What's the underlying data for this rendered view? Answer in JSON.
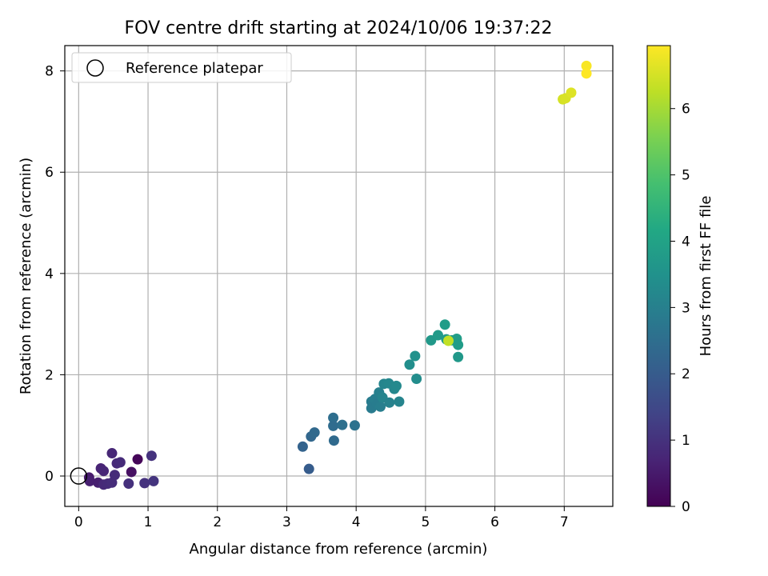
{
  "chart_data": {
    "type": "scatter",
    "title": "FOV centre drift starting at 2024/10/06 19:37:22",
    "xlabel": "Angular distance from reference (arcmin)",
    "ylabel": "Rotation from reference (arcmin)",
    "xlim": [
      -0.2,
      7.7
    ],
    "ylim": [
      -0.6,
      8.5
    ],
    "xticks": [
      0,
      1,
      2,
      3,
      4,
      5,
      6,
      7
    ],
    "yticks": [
      0,
      2,
      4,
      6,
      8
    ],
    "grid": true,
    "legend": {
      "placement": "top-left",
      "entries": [
        "Reference platepar"
      ]
    },
    "colorbar": {
      "label": "Hours from first FF file",
      "colormap": "viridis",
      "range": [
        0,
        6.95
      ],
      "ticks": [
        0,
        1,
        2,
        3,
        4,
        5,
        6
      ]
    },
    "reference": {
      "name": "Reference platepar",
      "x": 0,
      "y": 0
    },
    "points": [
      {
        "x": 0.85,
        "y": 0.33,
        "c": 0.1
      },
      {
        "x": 0.76,
        "y": 0.08,
        "c": 0.3
      },
      {
        "x": 0.15,
        "y": -0.03,
        "c": 0.5
      },
      {
        "x": 0.16,
        "y": -0.1,
        "c": 0.6
      },
      {
        "x": 0.28,
        "y": -0.13,
        "c": 0.6
      },
      {
        "x": 0.32,
        "y": 0.15,
        "c": 0.7
      },
      {
        "x": 0.36,
        "y": 0.1,
        "c": 0.75
      },
      {
        "x": 0.36,
        "y": -0.17,
        "c": 0.8
      },
      {
        "x": 0.42,
        "y": -0.15,
        "c": 0.85
      },
      {
        "x": 0.48,
        "y": 0.45,
        "c": 0.75
      },
      {
        "x": 0.48,
        "y": -0.13,
        "c": 0.9
      },
      {
        "x": 0.52,
        "y": 0.02,
        "c": 0.85
      },
      {
        "x": 0.55,
        "y": 0.25,
        "c": 0.8
      },
      {
        "x": 0.6,
        "y": 0.27,
        "c": 0.85
      },
      {
        "x": 0.72,
        "y": -0.15,
        "c": 0.95
      },
      {
        "x": 0.95,
        "y": -0.14,
        "c": 1.0
      },
      {
        "x": 1.05,
        "y": 0.4,
        "c": 1.0
      },
      {
        "x": 1.08,
        "y": -0.1,
        "c": 1.05
      },
      {
        "x": 3.23,
        "y": 0.58,
        "c": 2.2
      },
      {
        "x": 3.32,
        "y": 0.14,
        "c": 2.0
      },
      {
        "x": 3.35,
        "y": 0.78,
        "c": 2.3
      },
      {
        "x": 3.4,
        "y": 0.86,
        "c": 2.35
      },
      {
        "x": 3.67,
        "y": 1.15,
        "c": 2.5
      },
      {
        "x": 3.67,
        "y": 0.99,
        "c": 2.45
      },
      {
        "x": 3.68,
        "y": 0.7,
        "c": 2.4
      },
      {
        "x": 3.8,
        "y": 1.01,
        "c": 2.55
      },
      {
        "x": 3.98,
        "y": 1.0,
        "c": 2.6
      },
      {
        "x": 4.22,
        "y": 1.47,
        "c": 2.9
      },
      {
        "x": 4.22,
        "y": 1.34,
        "c": 2.85
      },
      {
        "x": 4.27,
        "y": 1.52,
        "c": 2.95
      },
      {
        "x": 4.3,
        "y": 1.42,
        "c": 2.9
      },
      {
        "x": 4.33,
        "y": 1.65,
        "c": 3.0
      },
      {
        "x": 4.35,
        "y": 1.37,
        "c": 2.95
      },
      {
        "x": 4.38,
        "y": 1.55,
        "c": 3.1
      },
      {
        "x": 4.4,
        "y": 1.82,
        "c": 3.15
      },
      {
        "x": 4.47,
        "y": 1.83,
        "c": 3.2
      },
      {
        "x": 4.48,
        "y": 1.45,
        "c": 3.05
      },
      {
        "x": 4.55,
        "y": 1.72,
        "c": 3.2
      },
      {
        "x": 4.58,
        "y": 1.78,
        "c": 3.25
      },
      {
        "x": 4.62,
        "y": 1.47,
        "c": 3.1
      },
      {
        "x": 4.77,
        "y": 2.2,
        "c": 3.4
      },
      {
        "x": 4.85,
        "y": 2.37,
        "c": 3.5
      },
      {
        "x": 4.87,
        "y": 1.92,
        "c": 3.35
      },
      {
        "x": 5.08,
        "y": 2.68,
        "c": 3.7
      },
      {
        "x": 5.18,
        "y": 2.78,
        "c": 3.75
      },
      {
        "x": 5.28,
        "y": 2.99,
        "c": 3.8
      },
      {
        "x": 5.3,
        "y": 2.7,
        "c": 3.75
      },
      {
        "x": 5.38,
        "y": 2.68,
        "c": 3.8
      },
      {
        "x": 5.45,
        "y": 2.71,
        "c": 3.85
      },
      {
        "x": 5.47,
        "y": 2.59,
        "c": 3.8
      },
      {
        "x": 5.47,
        "y": 2.35,
        "c": 3.7
      },
      {
        "x": 5.33,
        "y": 2.67,
        "c": 6.3
      },
      {
        "x": 6.98,
        "y": 7.44,
        "c": 6.5
      },
      {
        "x": 7.02,
        "y": 7.46,
        "c": 6.55
      },
      {
        "x": 7.1,
        "y": 7.57,
        "c": 6.6
      },
      {
        "x": 7.32,
        "y": 8.1,
        "c": 6.9
      },
      {
        "x": 7.32,
        "y": 7.95,
        "c": 6.95
      }
    ]
  }
}
